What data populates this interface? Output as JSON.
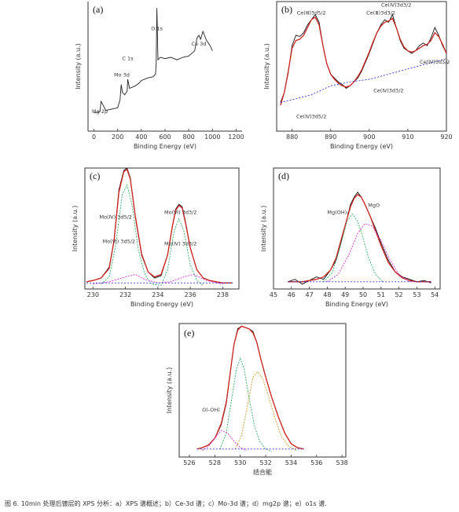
{
  "caption": "图 6. 10min 处理后镀层的 XPS 分析：a）XPS 谱概述；b）Ce-3d 谱；c）Mo-3d 谱；d）mg2p 谱；e）o1s 谱.",
  "chart_data": [
    {
      "id": "a",
      "type": "line",
      "panel_label": "(a)",
      "xlabel": "Binding Energy (eV)",
      "ylabel": "Intensity (a.u.)",
      "xlim": [
        -50,
        1250
      ],
      "xticks": [
        0,
        200,
        400,
        600,
        800,
        1000,
        1200
      ],
      "ylim": [
        0,
        100
      ],
      "annotations": [
        {
          "text": "Mg 2p",
          "x": 50,
          "y": 14
        },
        {
          "text": "Mo 3d",
          "x": 235,
          "y": 42
        },
        {
          "text": "C 1s",
          "x": 285,
          "y": 55
        },
        {
          "text": "O 1s",
          "x": 531,
          "y": 78
        },
        {
          "text": "Ce 3d",
          "x": 885,
          "y": 66
        }
      ],
      "x": [
        0,
        50,
        60,
        100,
        150,
        200,
        220,
        230,
        240,
        260,
        280,
        285,
        300,
        350,
        380,
        400,
        450,
        500,
        520,
        525,
        531,
        540,
        560,
        600,
        650,
        700,
        750,
        800,
        850,
        870,
        885,
        900,
        920,
        950,
        980,
        1000
      ],
      "y": [
        14,
        15,
        23,
        16,
        17,
        18,
        24,
        36,
        30,
        28,
        31,
        40,
        33,
        35,
        37,
        39,
        41,
        42,
        44,
        52,
        95,
        55,
        57,
        56,
        57,
        55,
        57,
        58,
        62,
        72,
        74,
        71,
        77,
        70,
        66,
        62
      ]
    },
    {
      "id": "b",
      "type": "line",
      "panel_label": "(b)",
      "xlabel": "Binding Energy (eV)",
      "ylabel": "Intensity (a.u.)",
      "xlim": [
        876,
        920
      ],
      "xticks": [
        880,
        890,
        900,
        910,
        920
      ],
      "ylim": [
        0,
        100
      ],
      "annotations": [
        {
          "text": "Ce(Ⅲ)3d5/2",
          "x": 885,
          "y": 90
        },
        {
          "text": "Ce(Ⅳ)3d5/2",
          "x": 885,
          "y": 10
        },
        {
          "text": "Ce(Ⅲ)3d3/2",
          "x": 903,
          "y": 90
        },
        {
          "text": "Ce(Ⅳ)3d3/2",
          "x": 907,
          "y": 96
        },
        {
          "text": "Ce(Ⅳ)3d3/2",
          "x": 905,
          "y": 30
        },
        {
          "text": "Ce(Ⅳ)3d3/2",
          "x": 917,
          "y": 52
        }
      ],
      "series": [
        {
          "role": "raw",
          "color": "#111111",
          "x": [
            877,
            878,
            879,
            880,
            881,
            882,
            883,
            884,
            885,
            886,
            887,
            888,
            889,
            890,
            891,
            892,
            893,
            894,
            895,
            896,
            897,
            898,
            899,
            900,
            901,
            902,
            903,
            904,
            905,
            906,
            907,
            908,
            909,
            910,
            911,
            912,
            913,
            914,
            915,
            916,
            917,
            918,
            919,
            920
          ],
          "y": [
            22,
            30,
            45,
            66,
            74,
            73,
            76,
            82,
            86,
            90,
            84,
            66,
            52,
            44,
            41,
            38,
            36,
            33,
            35,
            38,
            41,
            46,
            53,
            60,
            68,
            76,
            82,
            86,
            84,
            90,
            80,
            70,
            64,
            62,
            60,
            62,
            66,
            68,
            66,
            72,
            80,
            74,
            66,
            60
          ]
        },
        {
          "role": "fit",
          "color": "#cc2222",
          "x": [
            877,
            878,
            879,
            880,
            881,
            882,
            883,
            884,
            885,
            886,
            887,
            888,
            889,
            890,
            891,
            892,
            893,
            894,
            895,
            896,
            897,
            898,
            899,
            900,
            901,
            902,
            903,
            904,
            905,
            906,
            907,
            908,
            909,
            910,
            911,
            912,
            913,
            914,
            915,
            916,
            917,
            918,
            919,
            920
          ],
          "y": [
            20,
            30,
            46,
            64,
            70,
            71,
            74,
            80,
            86,
            88,
            82,
            66,
            52,
            44,
            40,
            37,
            35,
            34,
            35,
            38,
            42,
            47,
            54,
            61,
            69,
            76,
            81,
            84,
            85,
            87,
            80,
            71,
            65,
            62,
            61,
            62,
            64,
            66,
            67,
            70,
            76,
            73,
            67,
            60
          ]
        },
        {
          "role": "background",
          "color": "#3333cc",
          "x": [
            877,
            885,
            890,
            895,
            900,
            905,
            910,
            915,
            920
          ],
          "y": [
            22,
            28,
            35,
            38,
            40,
            44,
            48,
            52,
            56
          ]
        }
      ]
    },
    {
      "id": "c",
      "type": "line",
      "panel_label": "(c)",
      "xlabel": "Binding Energy (eV)",
      "ylabel": "Intensity (a.u.)",
      "xlim": [
        229.5,
        239
      ],
      "xticks": [
        230,
        232,
        234,
        236,
        238
      ],
      "ylim": [
        0,
        100
      ],
      "annotations": [
        {
          "text": "Mo(Ⅳ) 3d5/2",
          "x": 231.4,
          "y": 58
        },
        {
          "text": "Mo(Ⅵ) 3d5/2",
          "x": 231.6,
          "y": 38
        },
        {
          "text": "Mo(Ⅵ) 3d3/2",
          "x": 235.4,
          "y": 62
        },
        {
          "text": "Mo(Ⅳ) 3d3/2",
          "x": 235.4,
          "y": 36
        }
      ],
      "series": [
        {
          "role": "raw",
          "color": "#111111",
          "x": [
            229.6,
            230,
            230.5,
            231,
            231.3,
            231.6,
            231.9,
            232.1,
            232.3,
            232.6,
            233,
            233.4,
            233.8,
            234.2,
            234.6,
            234.9,
            235.1,
            235.3,
            235.5,
            235.7,
            236,
            236.4,
            236.8,
            237.2,
            237.6,
            238,
            238.6
          ],
          "y": [
            6,
            7,
            9,
            18,
            40,
            82,
            98,
            100,
            92,
            60,
            28,
            14,
            9,
            11,
            28,
            52,
            66,
            70,
            68,
            56,
            34,
            16,
            9,
            7,
            6,
            5,
            5
          ]
        },
        {
          "role": "fit",
          "color": "#cc2222",
          "x": [
            229.6,
            230,
            230.5,
            231,
            231.3,
            231.6,
            231.9,
            232.1,
            232.3,
            232.6,
            233,
            233.4,
            233.8,
            234.2,
            234.6,
            234.9,
            235.1,
            235.3,
            235.5,
            235.7,
            236,
            236.4,
            236.8,
            237.2,
            237.6,
            238,
            238.6
          ],
          "y": [
            6,
            7,
            9,
            17,
            40,
            80,
            97,
            99,
            91,
            61,
            29,
            14,
            10,
            12,
            28,
            52,
            65,
            69,
            67,
            55,
            34,
            16,
            9,
            7,
            6,
            5,
            5
          ]
        },
        {
          "role": "component",
          "color": "#33aa66",
          "x": [
            230.5,
            231,
            231.4,
            231.8,
            232.1,
            232.4,
            232.8,
            233.2,
            233.6,
            234.2,
            234.6,
            235,
            235.3,
            235.6,
            236,
            236.4,
            236.8
          ],
          "y": [
            4,
            10,
            36,
            78,
            86,
            70,
            32,
            12,
            4,
            3,
            16,
            48,
            58,
            48,
            20,
            7,
            3
          ]
        },
        {
          "role": "component",
          "color": "#cc33cc",
          "x": [
            230,
            231,
            232,
            232.6,
            233.2,
            234,
            234.8,
            235.6,
            236.2,
            237,
            238
          ],
          "y": [
            4,
            6,
            10,
            12,
            8,
            5,
            6,
            10,
            12,
            7,
            4
          ]
        },
        {
          "role": "background",
          "color": "#3333cc",
          "x": [
            229.6,
            238.6
          ],
          "y": [
            5,
            5
          ]
        }
      ]
    },
    {
      "id": "d",
      "type": "line",
      "panel_label": "(d)",
      "xlabel": "Binding Energy (eV)",
      "ylabel": "Intensity (a.u.)",
      "xlim": [
        45,
        54.3
      ],
      "xticks": [
        45,
        46,
        47,
        48,
        49,
        50,
        51,
        52,
        53,
        54
      ],
      "ylim": [
        0,
        100
      ],
      "annotations": [
        {
          "text": "Mg(OH)₂",
          "x": 48.6,
          "y": 62
        },
        {
          "text": "MgO",
          "x": 50.6,
          "y": 68
        }
      ],
      "series": [
        {
          "role": "raw",
          "color": "#111111",
          "x": [
            45.8,
            46.2,
            46.6,
            47,
            47.4,
            47.8,
            48.2,
            48.5,
            48.8,
            49.1,
            49.3,
            49.5,
            49.7,
            49.9,
            50.1,
            50.4,
            50.7,
            51,
            51.4,
            51.8,
            52.2,
            52.6,
            53,
            53.4,
            53.8
          ],
          "y": [
            6,
            8,
            4,
            7,
            10,
            8,
            16,
            24,
            40,
            58,
            70,
            76,
            80,
            76,
            70,
            60,
            50,
            38,
            24,
            14,
            10,
            8,
            6,
            7,
            5
          ]
        },
        {
          "role": "fit",
          "color": "#cc2222",
          "x": [
            45.8,
            46.2,
            46.6,
            47,
            47.4,
            47.8,
            48.2,
            48.5,
            48.8,
            49.1,
            49.3,
            49.5,
            49.7,
            49.9,
            50.1,
            50.4,
            50.7,
            51,
            51.4,
            51.8,
            52.2,
            52.6,
            53,
            53.4,
            53.8
          ],
          "y": [
            6,
            6,
            6,
            7,
            8,
            10,
            16,
            26,
            42,
            58,
            68,
            75,
            78,
            76,
            70,
            60,
            48,
            36,
            22,
            14,
            9,
            7,
            6,
            6,
            6
          ]
        },
        {
          "role": "component",
          "color": "#33aa66",
          "x": [
            47.8,
            48.3,
            48.7,
            49.1,
            49.4,
            49.7,
            50,
            50.3,
            50.7,
            51.1
          ],
          "y": [
            6,
            14,
            34,
            56,
            62,
            56,
            42,
            26,
            12,
            6
          ]
        },
        {
          "role": "component",
          "color": "#cc33cc",
          "x": [
            48,
            48.6,
            49.2,
            49.7,
            50.1,
            50.5,
            51,
            51.5,
            52,
            52.6
          ],
          "y": [
            6,
            12,
            28,
            46,
            54,
            52,
            40,
            24,
            12,
            6
          ]
        },
        {
          "role": "background",
          "color": "#3333cc",
          "x": [
            45.8,
            53.8
          ],
          "y": [
            6,
            6
          ]
        }
      ]
    },
    {
      "id": "e",
      "type": "line",
      "panel_label": "(e)",
      "xlabel": "结合能",
      "ylabel": "Intensity (a.u.)",
      "xlim": [
        525.2,
        538.3
      ],
      "xticks": [
        526,
        528,
        530,
        532,
        534,
        536,
        538
      ],
      "ylim": [
        0,
        100
      ],
      "annotations": [
        {
          "text": "O(-OH)",
          "x": 527.7,
          "y": 34
        }
      ],
      "series": [
        {
          "role": "raw",
          "color": "#111111",
          "x": [
            526.6,
            527,
            527.5,
            528,
            528.5,
            528.9,
            529.2,
            529.5,
            529.8,
            530.1,
            530.4,
            530.7,
            531,
            531.3,
            531.6,
            532,
            532.5,
            533,
            533.5,
            534,
            534.5,
            535
          ],
          "y": [
            6,
            7,
            9,
            14,
            24,
            40,
            62,
            84,
            96,
            98,
            97,
            96,
            94,
            86,
            74,
            60,
            44,
            30,
            18,
            10,
            7,
            6
          ]
        },
        {
          "role": "fit",
          "color": "#cc2222",
          "x": [
            526.6,
            527,
            527.5,
            528,
            528.5,
            528.9,
            529.2,
            529.5,
            529.8,
            530.1,
            530.4,
            530.7,
            531,
            531.3,
            531.6,
            532,
            532.5,
            533,
            533.5,
            534,
            534.5,
            535
          ],
          "y": [
            6,
            7,
            9,
            14,
            25,
            41,
            62,
            84,
            95,
            98,
            97,
            96,
            93,
            86,
            74,
            60,
            44,
            30,
            18,
            10,
            7,
            6
          ]
        },
        {
          "role": "component",
          "color": "#33aa66",
          "x": [
            528.4,
            528.9,
            529.3,
            529.7,
            530,
            530.3,
            530.7,
            531.1,
            531.5,
            532,
            532.5
          ],
          "y": [
            6,
            18,
            42,
            66,
            74,
            66,
            44,
            24,
            12,
            6,
            4
          ]
        },
        {
          "role": "component",
          "color": "#cc9933",
          "x": [
            529.6,
            530.1,
            530.6,
            531,
            531.4,
            531.8,
            532.2,
            532.7,
            533.2,
            533.8,
            534.4
          ],
          "y": [
            6,
            16,
            40,
            60,
            64,
            58,
            46,
            30,
            16,
            8,
            5
          ]
        },
        {
          "role": "component",
          "color": "#cc33cc",
          "x": [
            527,
            527.5,
            528,
            528.5,
            529,
            529.5,
            530,
            530.5
          ],
          "y": [
            5,
            8,
            14,
            20,
            18,
            12,
            7,
            5
          ]
        },
        {
          "role": "background",
          "color": "#3333cc",
          "x": [
            526.6,
            535
          ],
          "y": [
            6,
            6
          ]
        }
      ]
    }
  ]
}
